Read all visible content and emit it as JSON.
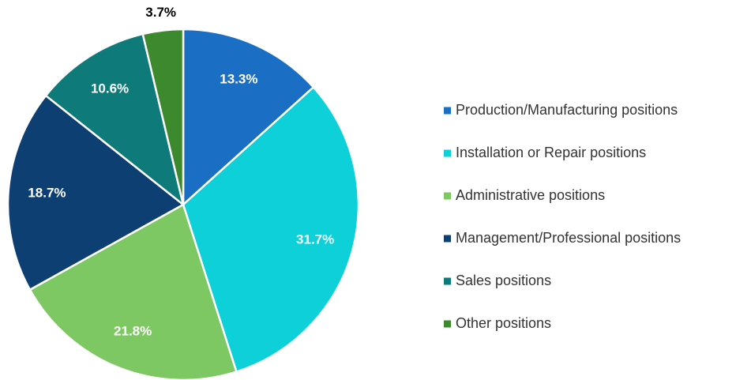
{
  "chart_data": {
    "type": "pie",
    "categories": [
      "Production/Manufacturing positions",
      "Installation or Repair positions",
      "Administrative positions",
      "Management/Professional positions",
      "Sales positions",
      "Other positions"
    ],
    "values": [
      13.3,
      31.7,
      21.8,
      18.7,
      10.6,
      3.7
    ],
    "value_labels": [
      "13.3%",
      "31.7%",
      "21.8%",
      "18.7%",
      "10.6%",
      "3.7%"
    ],
    "colors": [
      "#1a6fc4",
      "#0dd0d8",
      "#7ec864",
      "#0d3f73",
      "#0f7a7a",
      "#3d8a2e"
    ],
    "legend": "right"
  }
}
